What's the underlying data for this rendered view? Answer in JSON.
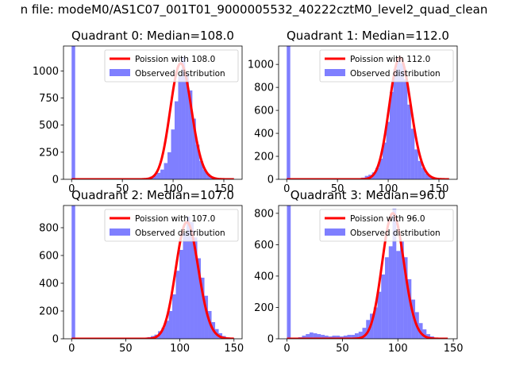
{
  "suptitle": "n file: modeM0/AS1C07_001T01_9000005532_40222cztM0_level2_quad_clean",
  "colors": {
    "fit": "#ff0000",
    "hist": "#0000ff",
    "hist_alpha": 0.5,
    "axes": "#000000"
  },
  "chart_data": [
    {
      "type": "bar",
      "title": "Quadrant 0: Median=108.0",
      "legend_loc": "upper right",
      "legend": [
        "Poission with 108.0",
        "Observed distribution"
      ],
      "xlim": [
        -8,
        168
      ],
      "ylim": [
        0,
        1230
      ],
      "xticks": [
        0,
        50,
        100,
        150
      ],
      "yticks": [
        0,
        250,
        500,
        750,
        1000
      ],
      "hist": {
        "name": "Observed distribution",
        "bin_edges": [
          0,
          3.5,
          73.5,
          77,
          80.5,
          84,
          87.5,
          91,
          94.5,
          98,
          101.5,
          105,
          108.5,
          112,
          115.5,
          119,
          122.5,
          126,
          129.5,
          133,
          136.5,
          140,
          143.5,
          147,
          150.5
        ],
        "counts": [
          1230,
          0,
          15,
          25,
          40,
          60,
          90,
          150,
          250,
          460,
          720,
          950,
          1130,
          980,
          820,
          560,
          320,
          170,
          90,
          50,
          25,
          12,
          5,
          2
        ]
      },
      "poisson": {
        "name": "Poission with 108.0",
        "mean": 108.0,
        "scale": 1070,
        "x_range": [
          0,
          160
        ]
      }
    },
    {
      "type": "bar",
      "title": "Quadrant 1: Median=112.0",
      "legend_loc": "upper right",
      "legend": [
        "Poission with 112.0",
        "Observed distribution"
      ],
      "xlim": [
        -8,
        168
      ],
      "ylim": [
        0,
        1160
      ],
      "xticks": [
        0,
        50,
        100,
        150
      ],
      "yticks": [
        0,
        200,
        400,
        600,
        800,
        1000
      ],
      "hist": {
        "name": "Observed distribution",
        "bin_edges": [
          0,
          3.5,
          70,
          73.5,
          77,
          80.5,
          84,
          87.5,
          91,
          94.5,
          98,
          101.5,
          105,
          108.5,
          112,
          115.5,
          119,
          122.5,
          126,
          129.5,
          133,
          136.5,
          140,
          143.5,
          147,
          150.5,
          154
        ],
        "counts": [
          1160,
          0,
          10,
          15,
          30,
          40,
          60,
          100,
          180,
          320,
          500,
          760,
          960,
          1060,
          1010,
          870,
          650,
          440,
          260,
          160,
          100,
          50,
          25,
          10,
          5,
          2
        ]
      },
      "poisson": {
        "name": "Poission with 112.0",
        "mean": 112.0,
        "scale": 1060,
        "x_range": [
          0,
          160
        ]
      }
    },
    {
      "type": "bar",
      "title": "Quadrant 2: Median=107.0",
      "legend_loc": "upper right",
      "legend": [
        "Poission with 107.0",
        "Observed distribution"
      ],
      "xlim": [
        -7.5,
        157.5
      ],
      "ylim": [
        0,
        960
      ],
      "xticks": [
        0,
        50,
        100,
        150
      ],
      "yticks": [
        0,
        200,
        400,
        600,
        800
      ],
      "hist": {
        "name": "Observed distribution",
        "bin_edges": [
          0,
          3.3,
          60,
          63.3,
          66.6,
          69.9,
          73.2,
          76.5,
          79.8,
          83.1,
          86.4,
          89.7,
          93,
          96.3,
          99.6,
          102.9,
          106.2,
          109.5,
          112.8,
          116.1,
          119.4,
          122.7,
          126,
          129.3,
          132.6,
          135.9,
          139.2,
          142.5,
          145.8,
          149.1
        ],
        "counts": [
          960,
          0,
          3,
          5,
          8,
          12,
          20,
          30,
          55,
          80,
          130,
          200,
          320,
          490,
          640,
          760,
          880,
          840,
          730,
          580,
          440,
          310,
          200,
          120,
          70,
          40,
          20,
          10,
          4
        ]
      },
      "poisson": {
        "name": "Poission with 107.0",
        "mean": 107.0,
        "scale": 840,
        "x_range": [
          0,
          150
        ]
      }
    },
    {
      "type": "bar",
      "title": "Quadrant 3: Median=96.0",
      "legend_loc": "upper right",
      "legend": [
        "Poission with 96.0",
        "Observed distribution"
      ],
      "xlim": [
        -7.5,
        153.5
      ],
      "ylim": [
        0,
        850
      ],
      "xticks": [
        0,
        50,
        100,
        150
      ],
      "yticks": [
        0,
        200,
        400,
        600,
        800
      ],
      "hist": {
        "name": "Observed distribution",
        "bin_edges": [
          0,
          3.4,
          10.2,
          13.6,
          17,
          20.4,
          23.8,
          27.2,
          30.6,
          34,
          37.4,
          40.8,
          44.2,
          47.6,
          51,
          54.4,
          57.8,
          61.2,
          64.6,
          68,
          71.4,
          74.8,
          78.2,
          81.6,
          85,
          88.4,
          91.8,
          95.2,
          98.6,
          102,
          105.4,
          108.8,
          112.2,
          115.6,
          119,
          122.4,
          125.8,
          129.2,
          132.6,
          136
        ],
        "counts": [
          850,
          0,
          10,
          20,
          30,
          40,
          35,
          30,
          25,
          20,
          15,
          20,
          20,
          15,
          20,
          25,
          25,
          35,
          45,
          70,
          120,
          160,
          200,
          300,
          410,
          520,
          590,
          830,
          560,
          620,
          520,
          380,
          250,
          170,
          100,
          60,
          30,
          15,
          5
        ]
      },
      "poisson": {
        "name": "Poission with 96.0",
        "mean": 96.0,
        "scale": 800,
        "x_range": [
          0,
          145
        ]
      }
    }
  ]
}
